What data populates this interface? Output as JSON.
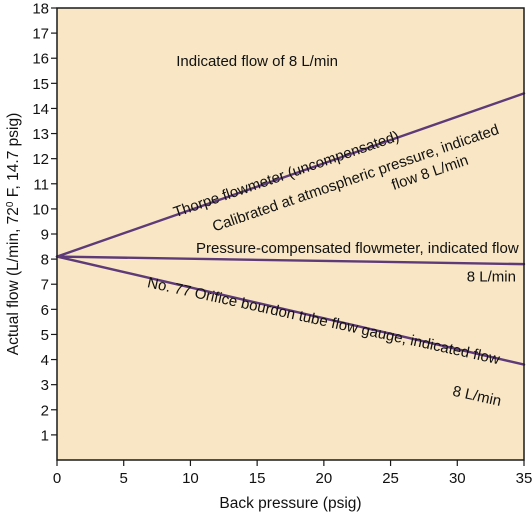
{
  "chart_data": {
    "type": "line",
    "title": "",
    "xlabel": "Back pressure (psig)",
    "ylabel_parts": [
      "Actual flow (L/min, 72",
      "0",
      " F, 14.7 psig)"
    ],
    "xlim": [
      0,
      35
    ],
    "ylim": [
      0,
      18
    ],
    "xticks": [
      0,
      5,
      10,
      15,
      20,
      25,
      30,
      35
    ],
    "yticks": [
      1,
      2,
      3,
      4,
      5,
      6,
      7,
      8,
      9,
      10,
      11,
      12,
      13,
      14,
      15,
      16,
      17,
      18
    ],
    "grid": false,
    "legend": "none",
    "colors": {
      "background": "#f8e6c4",
      "line": "#5e3a78",
      "axis": "#1a1a1a"
    },
    "series": [
      {
        "x": [
          0,
          35
        ],
        "y": [
          8.1,
          14.6
        ]
      },
      {
        "x": [
          0,
          35
        ],
        "y": [
          8.1,
          7.8
        ]
      },
      {
        "x": [
          0,
          35
        ],
        "y": [
          8.1,
          3.8
        ]
      }
    ],
    "annotations": [
      {
        "lines": [
          "Indicated flow of 8 L/min"
        ],
        "x": 15,
        "y": 15.7,
        "angle": 0,
        "anchor": "middle"
      },
      {
        "lines": [
          "Thorpe flowmeter (uncompensated)"
        ],
        "x": 17.3,
        "y": 11.2,
        "angle": -19,
        "anchor": "middle"
      },
      {
        "lines": [
          "Calibrated at atmospheric pressure, indicated",
          "flow 8 L/min"
        ],
        "x": 22.5,
        "y": 11.05,
        "angle": -19,
        "anchor": "middle",
        "line2_dx": 72
      },
      {
        "lines": [
          "Pressure-compensated flowmeter, indicated flow"
        ],
        "x": 34.6,
        "y": 8.25,
        "angle": 0,
        "anchor": "end"
      },
      {
        "lines": [
          "8 L/min"
        ],
        "x": 34.4,
        "y": 7.1,
        "angle": 0,
        "anchor": "end"
      },
      {
        "lines": [
          "No. 77 Orifice bourdon tube flow gauge, indicated flow"
        ],
        "x": 19.9,
        "y": 5.35,
        "angle": 12.4,
        "anchor": "middle"
      },
      {
        "lines": [
          "8 L/min"
        ],
        "x": 33.2,
        "y": 2.15,
        "angle": 12.4,
        "anchor": "end"
      }
    ]
  }
}
